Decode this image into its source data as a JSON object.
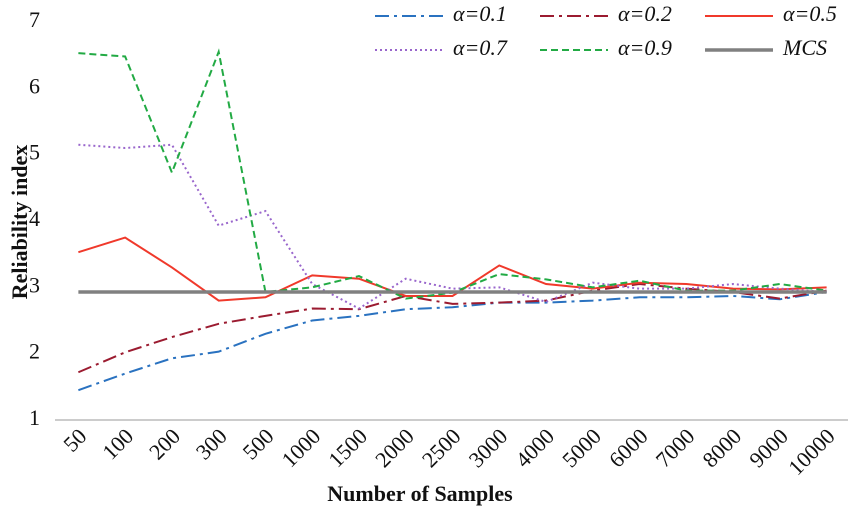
{
  "chart_data": {
    "type": "line",
    "x_label": "Number of Samples",
    "y_label": "Reliability index",
    "categories": [
      "50",
      "100",
      "200",
      "300",
      "500",
      "1000",
      "1500",
      "2000",
      "2500",
      "3000",
      "4000",
      "5000",
      "6000",
      "7000",
      "8000",
      "9000",
      "10000"
    ],
    "ylim": [
      1,
      7
    ],
    "yticks": [
      1,
      2,
      3,
      4,
      5,
      6,
      7
    ],
    "grid": false,
    "series": [
      {
        "name": "α=0.1",
        "color": "#2a72c0",
        "dash": "14 5 3 5",
        "width": 2,
        "values": [
          1.45,
          1.7,
          1.93,
          2.03,
          2.3,
          2.5,
          2.57,
          2.67,
          2.7,
          2.77,
          2.77,
          2.8,
          2.85,
          2.85,
          2.87,
          2.82,
          2.93
        ]
      },
      {
        "name": "α=0.2",
        "color": "#9b1b30",
        "dash": "14 5 3 5",
        "width": 2,
        "values": [
          1.72,
          2.02,
          2.25,
          2.45,
          2.57,
          2.68,
          2.67,
          2.87,
          2.75,
          2.77,
          2.8,
          2.95,
          3.05,
          2.98,
          2.93,
          2.83,
          2.95
        ]
      },
      {
        "name": "α=0.5",
        "color": "#f0392b",
        "dash": "none",
        "width": 2,
        "values": [
          3.53,
          3.75,
          3.3,
          2.8,
          2.85,
          3.18,
          3.13,
          2.87,
          2.87,
          3.33,
          3.05,
          2.98,
          3.07,
          3.05,
          2.98,
          2.97,
          3.0
        ]
      },
      {
        "name": "α=0.7",
        "color": "#9966cc",
        "dash": "2 3",
        "width": 2,
        "values": [
          5.15,
          5.1,
          5.15,
          3.93,
          4.15,
          3.05,
          2.68,
          3.13,
          2.98,
          3.0,
          2.78,
          3.07,
          2.98,
          2.98,
          3.05,
          2.98,
          2.93
        ]
      },
      {
        "name": "α=0.9",
        "color": "#22aa44",
        "dash": "7 4",
        "width": 2,
        "values": [
          6.53,
          6.48,
          4.73,
          6.55,
          2.93,
          3.0,
          3.17,
          2.83,
          2.92,
          3.2,
          3.12,
          3.0,
          3.1,
          2.95,
          2.95,
          3.05,
          2.95
        ]
      },
      {
        "name": "MCS",
        "color": "#808080",
        "dash": "none",
        "width": 3.5,
        "values": [
          2.93,
          2.93,
          2.93,
          2.93,
          2.93,
          2.93,
          2.93,
          2.93,
          2.93,
          2.93,
          2.93,
          2.93,
          2.93,
          2.93,
          2.93,
          2.93,
          2.93
        ]
      }
    ]
  }
}
